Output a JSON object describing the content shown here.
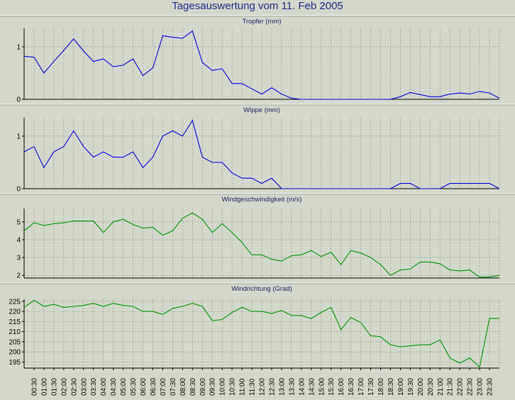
{
  "title": "Tagesauswertung vom 11. Feb 2005",
  "colors": {
    "background": "#d4d8cc",
    "blue_series": "#0000d0",
    "green_series": "#009000",
    "grid": "#8a8a8a"
  },
  "chart_data": [
    {
      "type": "line",
      "title": "Tropfer (mm)",
      "xlabel": "",
      "ylabel": "",
      "ylim": [
        0,
        1.35
      ],
      "yticks": [
        0,
        1
      ],
      "grid": true,
      "color": "#0000d0",
      "x": [
        "00:00",
        "00:30",
        "01:00",
        "01:30",
        "02:00",
        "02:30",
        "03:00",
        "03:30",
        "04:00",
        "04:30",
        "05:00",
        "05:30",
        "06:00",
        "06:30",
        "07:00",
        "07:30",
        "08:00",
        "08:30",
        "09:00",
        "09:30",
        "10:00",
        "10:30",
        "11:00",
        "11:30",
        "12:00",
        "12:30",
        "13:00",
        "13:30",
        "14:00",
        "14:30",
        "15:00",
        "15:30",
        "16:00",
        "16:30",
        "17:00",
        "17:30",
        "18:00",
        "18:30",
        "19:00",
        "19:30",
        "20:00",
        "20:30",
        "21:00",
        "21:30",
        "22:00",
        "22:30",
        "23:00",
        "23:30",
        "24:00"
      ],
      "values": [
        0.82,
        0.8,
        0.5,
        0.72,
        0.93,
        1.15,
        0.92,
        0.72,
        0.77,
        0.62,
        0.65,
        0.77,
        0.45,
        0.6,
        1.21,
        1.18,
        1.16,
        1.3,
        0.7,
        0.55,
        0.58,
        0.3,
        0.3,
        0.2,
        0.1,
        0.22,
        0.1,
        0.02,
        0,
        0,
        0,
        0,
        0,
        0,
        0,
        0,
        0,
        0,
        0.05,
        0.13,
        0.09,
        0.05,
        0.05,
        0.1,
        0.12,
        0.1,
        0.15,
        0.12,
        0.02
      ]
    },
    {
      "type": "line",
      "title": "Wippe (mm)",
      "xlabel": "",
      "ylabel": "",
      "ylim": [
        0,
        1.35
      ],
      "yticks": [
        0,
        1
      ],
      "grid": true,
      "color": "#0000d0",
      "x": [
        "00:00",
        "00:30",
        "01:00",
        "01:30",
        "02:00",
        "02:30",
        "03:00",
        "03:30",
        "04:00",
        "04:30",
        "05:00",
        "05:30",
        "06:00",
        "06:30",
        "07:00",
        "07:30",
        "08:00",
        "08:30",
        "09:00",
        "09:30",
        "10:00",
        "10:30",
        "11:00",
        "11:30",
        "12:00",
        "12:30",
        "13:00",
        "13:30",
        "14:00",
        "14:30",
        "15:00",
        "15:30",
        "16:00",
        "16:30",
        "17:00",
        "17:30",
        "18:00",
        "18:30",
        "19:00",
        "19:30",
        "20:00",
        "20:30",
        "21:00",
        "21:30",
        "22:00",
        "22:30",
        "23:00",
        "23:30",
        "24:00"
      ],
      "values": [
        0.7,
        0.8,
        0.4,
        0.7,
        0.8,
        1.1,
        0.8,
        0.6,
        0.7,
        0.6,
        0.6,
        0.7,
        0.4,
        0.6,
        1,
        1.1,
        1,
        1.3,
        0.6,
        0.5,
        0.5,
        0.3,
        0.2,
        0.2,
        0.1,
        0.2,
        0,
        0,
        0,
        0,
        0,
        0,
        0,
        0,
        0,
        0,
        0,
        0,
        0.1,
        0.1,
        0,
        0,
        0,
        0.1,
        0.1,
        0.1,
        0.1,
        0.1,
        0
      ]
    },
    {
      "type": "line",
      "title": "Windgeschwindigkeit (m/s)",
      "xlabel": "",
      "ylabel": "",
      "ylim": [
        1.85,
        5.75
      ],
      "yticks": [
        2,
        3,
        4,
        5
      ],
      "grid": true,
      "color": "#009000",
      "x": [
        "00:00",
        "00:30",
        "01:00",
        "01:30",
        "02:00",
        "02:30",
        "03:00",
        "03:30",
        "04:00",
        "04:30",
        "05:00",
        "05:30",
        "06:00",
        "06:30",
        "07:00",
        "07:30",
        "08:00",
        "08:30",
        "09:00",
        "09:30",
        "10:00",
        "10:30",
        "11:00",
        "11:30",
        "12:00",
        "12:30",
        "13:00",
        "13:30",
        "14:00",
        "14:30",
        "15:00",
        "15:30",
        "16:00",
        "16:30",
        "17:00",
        "17:30",
        "18:00",
        "18:30",
        "19:00",
        "19:30",
        "20:00",
        "20:30",
        "21:00",
        "21:30",
        "22:00",
        "22:30",
        "23:00",
        "23:30",
        "24:00"
      ],
      "values": [
        4.5,
        4.95,
        4.8,
        4.9,
        4.95,
        5.05,
        5.05,
        5.05,
        4.4,
        5,
        5.15,
        4.85,
        4.65,
        4.7,
        4.25,
        4.5,
        5.2,
        5.5,
        5.15,
        4.4,
        4.9,
        4.4,
        3.85,
        3.15,
        3.15,
        2.9,
        2.8,
        3.1,
        3.15,
        3.4,
        3.05,
        3.3,
        2.6,
        3.4,
        3.25,
        3,
        2.6,
        2,
        2.3,
        2.35,
        2.75,
        2.75,
        2.65,
        2.3,
        2.25,
        2.3,
        1.9,
        1.9,
        2
      ]
    },
    {
      "type": "line",
      "title": "Windrichtung (Grad)",
      "xlabel": "",
      "ylabel": "",
      "ylim": [
        192,
        226
      ],
      "yticks": [
        195,
        200,
        205,
        210,
        215,
        220,
        225
      ],
      "grid": true,
      "color": "#009000",
      "x": [
        "00:00",
        "00:30",
        "01:00",
        "01:30",
        "02:00",
        "02:30",
        "03:00",
        "03:30",
        "04:00",
        "04:30",
        "05:00",
        "05:30",
        "06:00",
        "06:30",
        "07:00",
        "07:30",
        "08:00",
        "08:30",
        "09:00",
        "09:30",
        "10:00",
        "10:30",
        "11:00",
        "11:30",
        "12:00",
        "12:30",
        "13:00",
        "13:30",
        "14:00",
        "14:30",
        "15:00",
        "15:30",
        "16:00",
        "16:30",
        "17:00",
        "17:30",
        "18:00",
        "18:30",
        "19:00",
        "19:30",
        "20:00",
        "20:30",
        "21:00",
        "21:30",
        "22:00",
        "22:30",
        "23:00",
        "23:30",
        "24:00"
      ],
      "values": [
        222,
        225.5,
        222.5,
        223.5,
        222,
        222.5,
        223,
        224,
        222.5,
        224,
        223,
        222.5,
        220,
        220,
        218.5,
        221.5,
        222.5,
        224,
        222.5,
        215.5,
        216,
        219.5,
        222,
        220,
        220,
        219,
        220.5,
        218,
        218,
        216.5,
        219.5,
        222,
        211,
        217,
        214.5,
        208,
        207.5,
        203.5,
        202.5,
        203,
        203.5,
        203.5,
        206,
        197,
        194.5,
        197,
        192.5,
        216.5,
        216.5
      ]
    }
  ],
  "x_axis": {
    "tick_labels": [
      "00:30",
      "01:00",
      "01:30",
      "02:00",
      "02:30",
      "03:00",
      "03:30",
      "04:00",
      "04:30",
      "05:00",
      "05:30",
      "06:00",
      "06:30",
      "07:00",
      "07:30",
      "08:00",
      "08:30",
      "09:00",
      "09:30",
      "10:00",
      "10:30",
      "11:00",
      "11:30",
      "12:00",
      "12:30",
      "13:00",
      "13:30",
      "14:00",
      "14:30",
      "15:00",
      "15:30",
      "16:00",
      "16:30",
      "17:00",
      "17:30",
      "18:00",
      "18:30",
      "19:00",
      "19:30",
      "20:00",
      "20:30",
      "21:00",
      "21:30",
      "22:00",
      "22:30",
      "23:00",
      "23:30"
    ]
  }
}
